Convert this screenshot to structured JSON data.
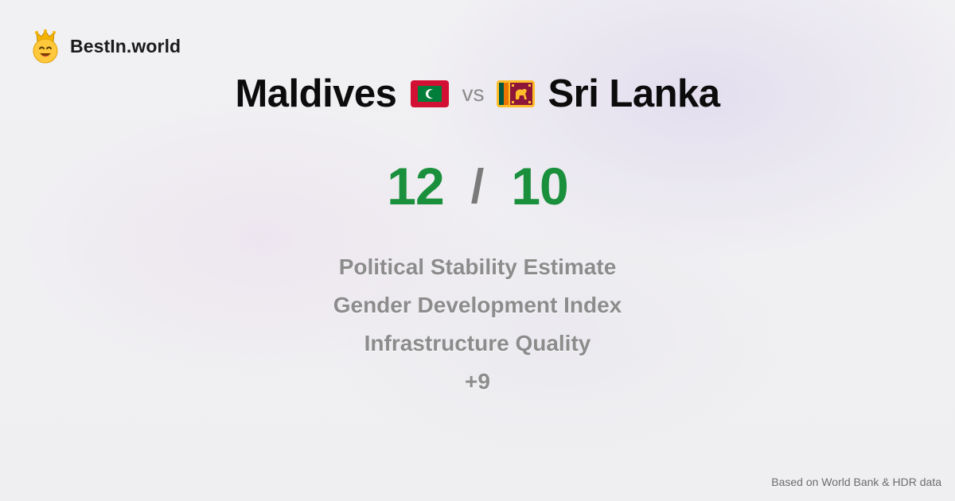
{
  "brand": {
    "name": "BestIn.world",
    "logo_icon": "crowned-smiley-icon"
  },
  "comparison": {
    "left": {
      "name": "Maldives",
      "flag_icon": "maldives-flag-icon"
    },
    "vs_label": "vs",
    "right": {
      "name": "Sri Lanka",
      "flag_icon": "sri-lanka-flag-icon"
    }
  },
  "score": {
    "left": "12",
    "separator": "/",
    "right": "10"
  },
  "criteria": [
    "Political Stability Estimate",
    "Gender Development Index",
    "Infrastructure Quality"
  ],
  "more_count": "+9",
  "footer": {
    "source": "Based on World Bank & HDR data"
  },
  "colors": {
    "score": "#1a8f3c",
    "criteria_text": "#8c8c8c",
    "heading": "#0c0c0c",
    "maldives_red": "#d21034",
    "maldives_green": "#007e3a",
    "sri_lanka_maroon": "#8d153a",
    "sri_lanka_gold": "#ffbe29"
  }
}
